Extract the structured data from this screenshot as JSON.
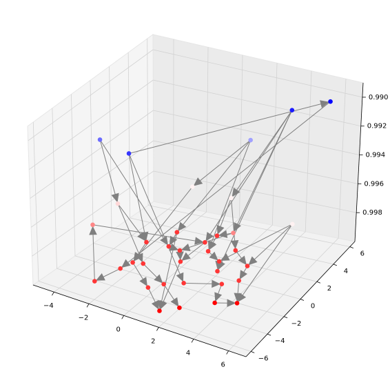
{
  "chart_data": {
    "type": "scatter3d",
    "x": [
      5.7,
      4.0,
      -1.3,
      -4.0,
      1.8,
      0.1,
      2.4,
      -2.6,
      -3.7,
      2.8,
      6.4,
      -0.9,
      -1.7,
      -0.5,
      0.9,
      1.1,
      0.2,
      1.5,
      -1.2,
      -1.4,
      0.8,
      2.5,
      2.9,
      2.7,
      4.0,
      -1.8,
      0.7,
      1.2,
      2.0,
      1.6,
      2.3,
      3.7,
      3.6,
      4.6,
      4.3,
      -0.7
    ],
    "y": [
      5.5,
      4.5,
      -3.3,
      -1.3,
      4.2,
      1.0,
      0.9,
      -2.1,
      -2.8,
      0.4,
      0.0,
      1.2,
      -0.7,
      -0.5,
      0.9,
      1.9,
      -0.6,
      0.1,
      -3.2,
      -4.2,
      -1.7,
      -0.6,
      -1.6,
      0.9,
      -0.3,
      -6.3,
      -5.2,
      -4.4,
      -3.7,
      -5.7,
      -4.8,
      -2.7,
      -3.3,
      -2.7,
      -1.9,
      -3.0
    ],
    "z": [
      0.99,
      0.9905,
      0.991,
      0.992,
      0.993,
      0.995,
      0.995,
      0.9955,
      0.997,
      0.997,
      0.995,
      0.9985,
      0.9985,
      0.9985,
      0.9985,
      0.9985,
      0.9985,
      0.9985,
      0.9985,
      0.9985,
      0.9985,
      0.9985,
      0.9985,
      0.9985,
      0.9985,
      0.9985,
      0.9985,
      0.9985,
      0.9985,
      0.9995,
      0.9995,
      0.9985,
      0.9995,
      0.9995,
      0.9985,
      0.9985
    ],
    "edges": [
      [
        2,
        0
      ],
      [
        4,
        5
      ],
      [
        1,
        6
      ],
      [
        1,
        9
      ],
      [
        1,
        14
      ],
      [
        1,
        22
      ],
      [
        3,
        7
      ],
      [
        3,
        13
      ],
      [
        2,
        12
      ],
      [
        2,
        28
      ],
      [
        4,
        11
      ],
      [
        4,
        17
      ],
      [
        6,
        15
      ],
      [
        7,
        12
      ],
      [
        7,
        35
      ],
      [
        8,
        14
      ],
      [
        25,
        8
      ],
      [
        9,
        16
      ],
      [
        10,
        24
      ],
      [
        10,
        33
      ],
      [
        10,
        21
      ],
      [
        11,
        13
      ],
      [
        12,
        18
      ],
      [
        13,
        16
      ],
      [
        14,
        20
      ],
      [
        15,
        17
      ],
      [
        16,
        20
      ],
      [
        17,
        21
      ],
      [
        18,
        26
      ],
      [
        19,
        25
      ],
      [
        20,
        29
      ],
      [
        21,
        22
      ],
      [
        23,
        24
      ],
      [
        24,
        34
      ],
      [
        26,
        29
      ],
      [
        27,
        30
      ],
      [
        28,
        31
      ],
      [
        31,
        32
      ],
      [
        32,
        33
      ],
      [
        34,
        33
      ],
      [
        35,
        27
      ],
      [
        0,
        19
      ],
      [
        5,
        18
      ],
      [
        6,
        23
      ],
      [
        9,
        15
      ],
      [
        11,
        29
      ]
    ],
    "colormap": "bwr",
    "arrow_color": "#808080",
    "xlim": [
      -5.2,
      7.0
    ],
    "ylim": [
      -6.6,
      6.6
    ],
    "zlim": [
      1.0,
      0.989
    ],
    "xticks": [
      {
        "value": -4,
        "label": "−4"
      },
      {
        "value": -2,
        "label": "−2"
      },
      0,
      2,
      4,
      6
    ],
    "yticks": [
      {
        "value": -6,
        "label": "−6"
      },
      {
        "value": -4,
        "label": "−4"
      },
      {
        "value": -2,
        "label": "−2"
      },
      0,
      2,
      4,
      6
    ],
    "zticks": [
      {
        "value": 0.99,
        "label": "0.990"
      },
      {
        "value": 0.992,
        "label": "0.992"
      },
      {
        "value": 0.994,
        "label": "0.994"
      },
      {
        "value": 0.996,
        "label": "0.996"
      },
      {
        "value": 0.998,
        "label": "0.998"
      }
    ],
    "grid": true
  }
}
